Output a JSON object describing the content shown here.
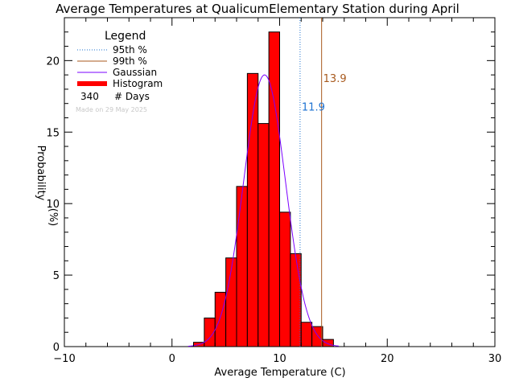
{
  "chart_data": {
    "type": "bar",
    "title": "Average Temperatures at QualicumElementary Station during April",
    "xlabel": "Average Temperature (C)",
    "ylabel_line1": "Probability",
    "ylabel_line2": "(%)",
    "xlim": [
      -10,
      30
    ],
    "ylim": [
      0,
      23
    ],
    "xticks": [
      -10,
      0,
      10,
      20,
      30
    ],
    "yticks": [
      0,
      5,
      10,
      15,
      20
    ],
    "bin_width": 1,
    "histogram": {
      "name": "Histogram",
      "color": "#ff0000",
      "bin_starts": [
        2,
        3,
        4,
        5,
        6,
        7,
        8,
        9,
        10,
        11,
        12,
        13,
        14
      ],
      "values": [
        0.3,
        2.0,
        3.8,
        6.2,
        11.2,
        19.1,
        15.6,
        22.0,
        9.4,
        6.5,
        1.7,
        1.4,
        0.5
      ]
    },
    "gaussian": {
      "name": "Gaussian",
      "color": "#7a00ff",
      "mean": 8.6,
      "sigma": 1.95,
      "peak": 19.0,
      "x_range": [
        1.5,
        15.5
      ]
    },
    "percentile_95": {
      "name": "95th %",
      "value": 11.9,
      "label": "11.9",
      "color": "#1e73d2"
    },
    "percentile_99": {
      "name": "99th %",
      "value": 13.9,
      "label": "13.9",
      "color": "#a85a1e"
    },
    "legend": {
      "title": "Legend",
      "entries": [
        "95th %",
        "99th %",
        "Gaussian",
        "Histogram"
      ],
      "days_count": "340",
      "days_label": "# Days",
      "position": "top-left"
    },
    "footnote": "Made on 29 May 2025"
  }
}
